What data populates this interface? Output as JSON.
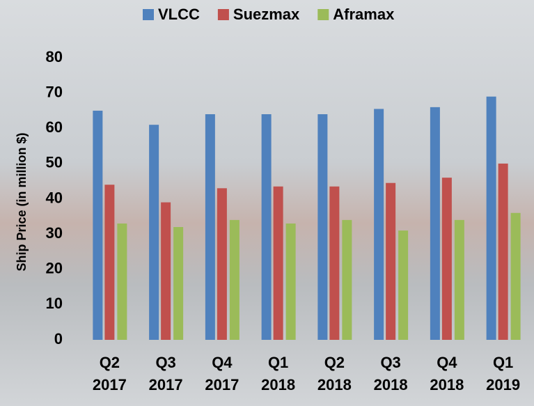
{
  "chart_data": {
    "type": "bar",
    "y_label": "Ship Price (in million $)",
    "categories": [
      "Q2 2017",
      "Q3 2017",
      "Q4 2017",
      "Q1 2018",
      "Q2 2018",
      "Q3 2018",
      "Q4 2018",
      "Q1 2019"
    ],
    "series": [
      {
        "name": "VLCC",
        "color": "#4f81bd",
        "values": [
          65,
          61,
          64,
          64,
          64,
          65.5,
          66,
          69
        ]
      },
      {
        "name": "Suezmax",
        "color": "#c0504d",
        "values": [
          44,
          39,
          43,
          43.5,
          43.5,
          44.5,
          46,
          50
        ]
      },
      {
        "name": "Aframax",
        "color": "#9bbb59",
        "values": [
          33,
          32,
          34,
          33,
          34,
          31,
          34,
          36
        ]
      }
    ],
    "ylim": [
      0,
      80
    ],
    "yticks": [
      0,
      10,
      20,
      30,
      40,
      50,
      60,
      70,
      80
    ],
    "legend": "top",
    "grid": false
  }
}
